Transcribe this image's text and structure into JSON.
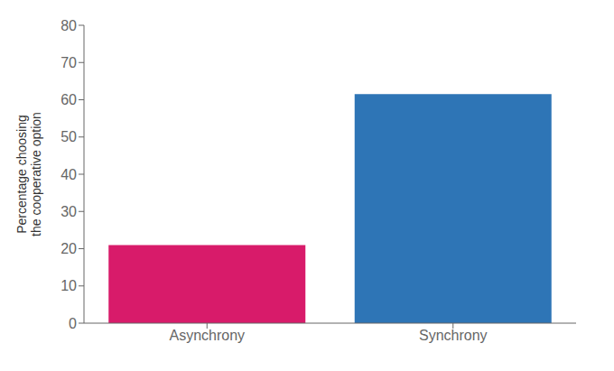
{
  "chart_data": {
    "type": "bar",
    "categories": [
      "Asynchrony",
      "Synchrony"
    ],
    "values": [
      21,
      61.5
    ],
    "colors": [
      "#D81B6A",
      "#2E75B6"
    ],
    "ylabel": "Percentage choosing\nthe cooperative option",
    "ylim": [
      0,
      80
    ],
    "yticks": [
      0,
      10,
      20,
      30,
      40,
      50,
      60,
      70,
      80
    ],
    "grid": false
  }
}
